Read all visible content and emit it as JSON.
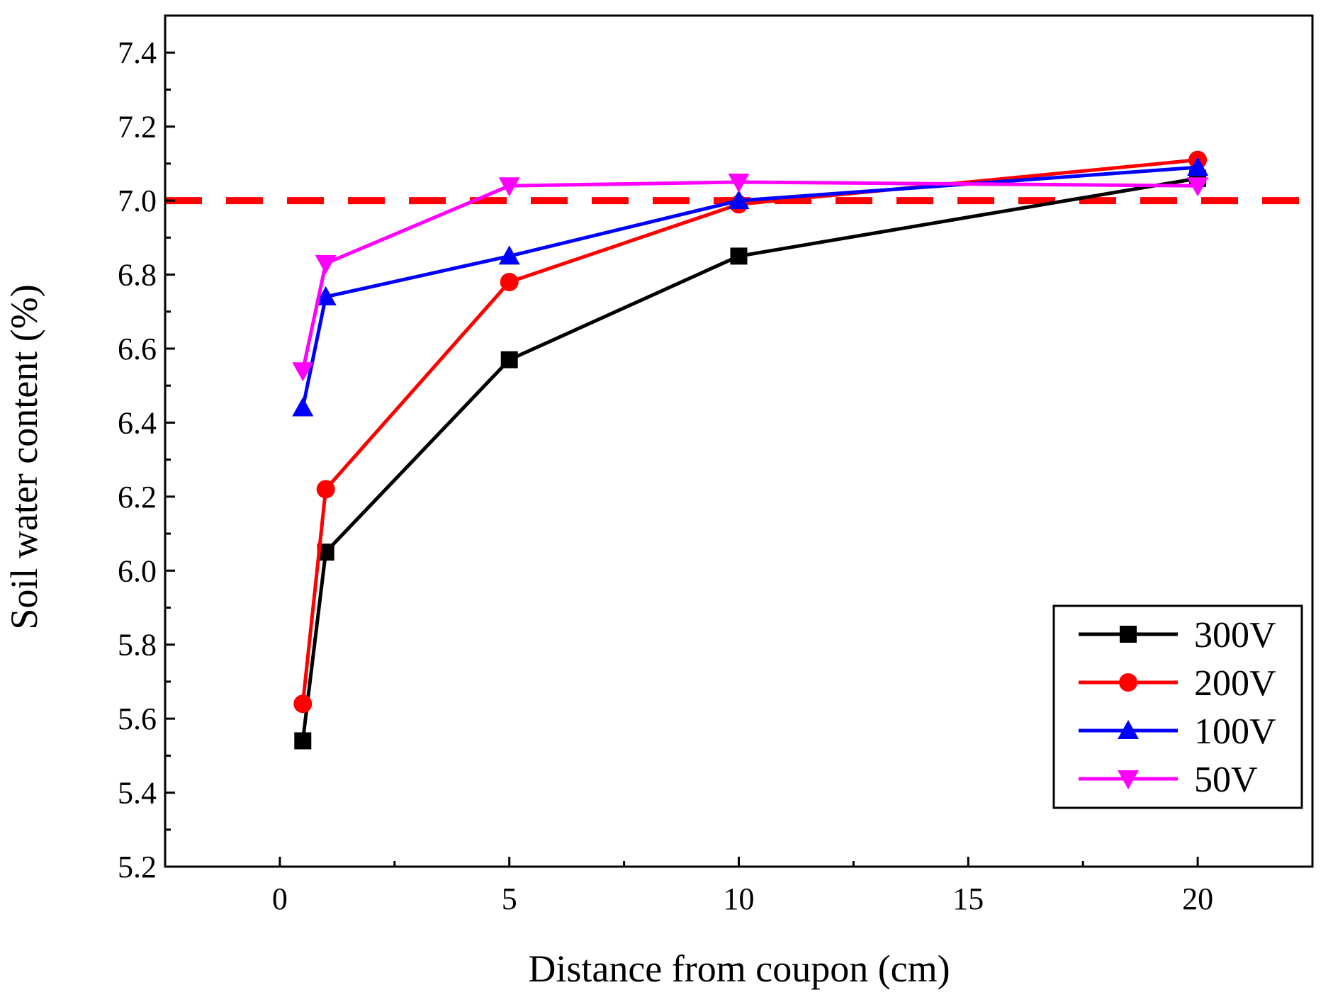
{
  "chart_data": {
    "type": "line",
    "title": "",
    "xlabel": "Distance from coupon (cm)",
    "ylabel": "Soil water content (%)",
    "xlim": [
      -2.5,
      22.5
    ],
    "ylim": [
      5.2,
      7.5
    ],
    "xticks": [
      0,
      5,
      10,
      15,
      20
    ],
    "xtick_labels": [
      "0",
      "5",
      "10",
      "15",
      "20"
    ],
    "yticks": [
      5.2,
      5.4,
      5.6,
      5.8,
      6.0,
      6.2,
      6.4,
      6.6,
      6.8,
      7.0,
      7.2,
      7.4
    ],
    "ytick_labels": [
      "5.2",
      "5.4",
      "5.6",
      "5.8",
      "6.0",
      "6.2",
      "6.4",
      "6.6",
      "6.8",
      "7.0",
      "7.2",
      "7.4"
    ],
    "grid": false,
    "legend_position": "bottom-right",
    "reference_line": {
      "y": 7.0,
      "color": "#ff0000",
      "style": "dashed"
    },
    "x": [
      0.5,
      1,
      5,
      10,
      20
    ],
    "series": [
      {
        "name": "300V",
        "color": "#000000",
        "marker": "square",
        "values": [
          5.54,
          6.05,
          6.57,
          6.85,
          7.06
        ]
      },
      {
        "name": "200V",
        "color": "#ff0000",
        "marker": "circle",
        "values": [
          5.64,
          6.22,
          6.78,
          6.99,
          7.11
        ]
      },
      {
        "name": "100V",
        "color": "#0000ff",
        "marker": "triangle-up",
        "values": [
          6.44,
          6.74,
          6.85,
          7.0,
          7.09
        ]
      },
      {
        "name": "50V",
        "color": "#ff00ff",
        "marker": "triangle-down",
        "values": [
          6.54,
          6.83,
          7.04,
          7.05,
          7.04
        ]
      }
    ]
  }
}
